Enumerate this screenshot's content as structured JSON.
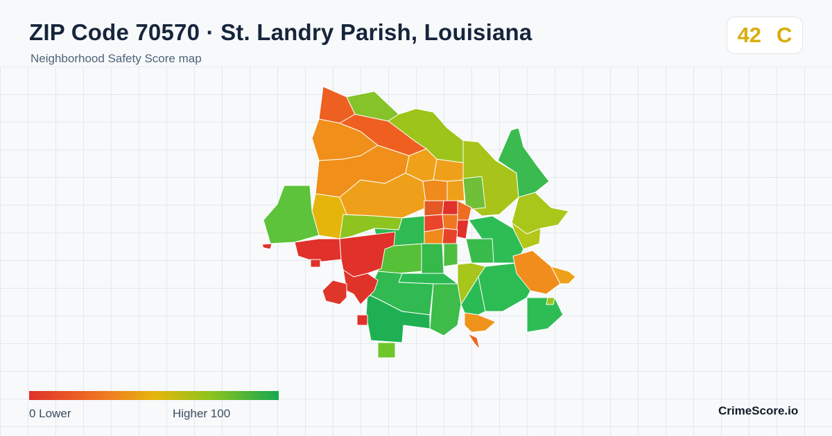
{
  "header": {
    "title": "ZIP Code 70570 · St. Landry Parish, Louisiana",
    "subtitle": "Neighborhood Safety Score map"
  },
  "score": {
    "value": "42",
    "grade": "C",
    "color": "#d8ad0d"
  },
  "legend": {
    "low_label": "0  Lower",
    "high_label": "Higher  100",
    "min": 0,
    "max": 100,
    "colors": [
      "#e0312a",
      "#f07722",
      "#e6b50c",
      "#8fc41b",
      "#16a850"
    ]
  },
  "brand": "CrimeScore.io"
}
